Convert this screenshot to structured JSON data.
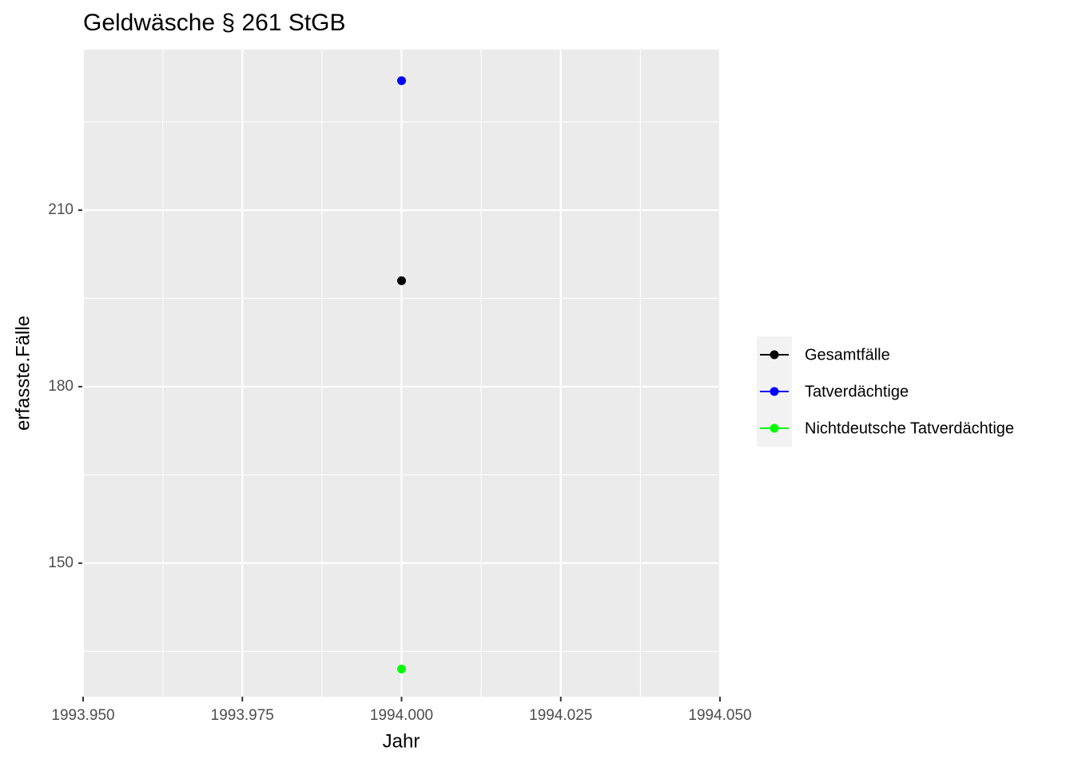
{
  "chart_data": {
    "type": "line",
    "title": "Geldwäsche § 261 StGB",
    "x_label": "Jahr",
    "y_label": "erfasste.Fälle",
    "x": [
      1994
    ],
    "series": [
      {
        "name": "Gesamtfälle",
        "color": "#000000",
        "values": [
          198
        ]
      },
      {
        "name": "Tatverdächtige",
        "color": "#0000ff",
        "values": [
          232
        ]
      },
      {
        "name": "Nichtdeutsche Tatverdächtige",
        "color": "#00ff00",
        "values": [
          132
        ]
      }
    ],
    "xlim": [
      1993.95,
      1994.05
    ],
    "xticks": [
      {
        "value": 1993.95,
        "label": "1993.950"
      },
      {
        "value": 1993.975,
        "label": "1993.975"
      },
      {
        "value": 1994,
        "label": "1994.000"
      },
      {
        "value": 1994.025,
        "label": "1994.025"
      },
      {
        "value": 1994.05,
        "label": "1994.050"
      }
    ],
    "ylim": [
      127.3,
      237.3
    ],
    "yticks": [
      150,
      180,
      210
    ],
    "grid": true
  }
}
